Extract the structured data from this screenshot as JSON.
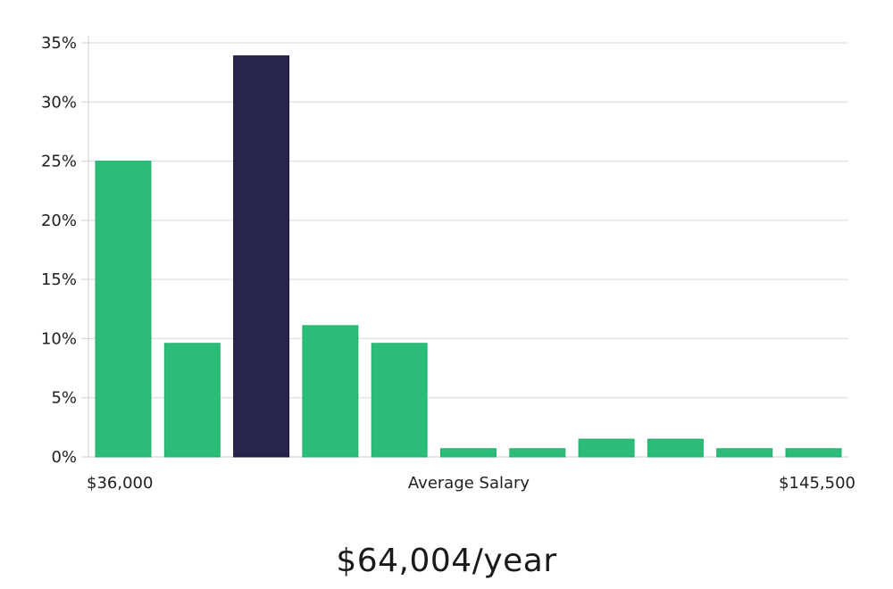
{
  "headline": "$64,004/year",
  "colors": {
    "bar": "#2bbd78",
    "highlight": "#28254a",
    "grid": "#dadada",
    "axis": "#cccccc"
  },
  "chart_data": {
    "type": "bar",
    "title": "",
    "xlabel": "Average Salary",
    "ylabel": "",
    "x_min_label": "$36,000",
    "x_max_label": "$145,500",
    "ylim": [
      0,
      35
    ],
    "yticks": [
      0,
      5,
      10,
      15,
      20,
      25,
      30,
      35
    ],
    "ytick_labels": [
      "0%",
      "5%",
      "10%",
      "15%",
      "20%",
      "25%",
      "30%",
      "35%"
    ],
    "grid": true,
    "values": [
      25,
      9.6,
      33.9,
      11.1,
      9.6,
      0.7,
      0.7,
      1.5,
      1.5,
      0.7,
      0.7
    ],
    "highlight_index": 2
  }
}
